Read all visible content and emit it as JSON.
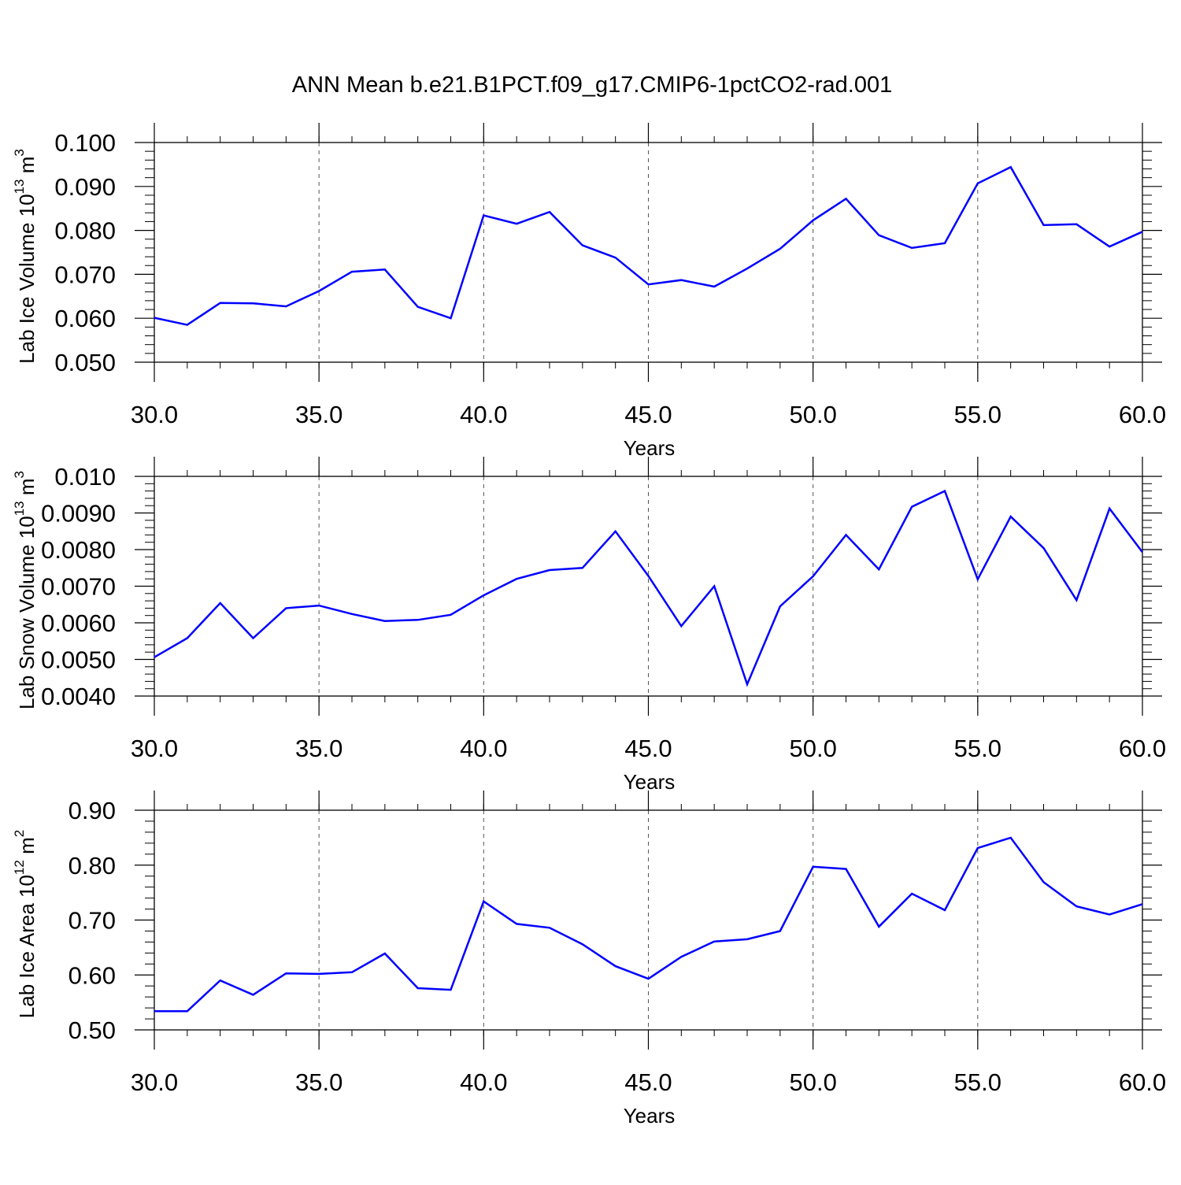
{
  "title": "ANN Mean b.e21.B1PCT.f09_g17.CMIP6-1pctCO2-rad.001",
  "line_color": "#0000ff",
  "chart_data": [
    {
      "type": "line",
      "ylabel": "Lab Ice Volume 10",
      "ylabel_exp": "13",
      "ylabel_unit": " m",
      "ylabel_unit_exp": "3",
      "xlabel": "Years",
      "xlim": [
        30,
        60
      ],
      "ylim": [
        0.05,
        0.1
      ],
      "x_ticks": [
        "30.0",
        "35.0",
        "40.0",
        "45.0",
        "50.0",
        "55.0",
        "60.0"
      ],
      "y_ticks": [
        "0.050",
        "0.060",
        "0.070",
        "0.080",
        "0.090",
        "0.100"
      ],
      "grid": "vertical dashed at major x ticks",
      "x": [
        30,
        31,
        32,
        33,
        34,
        35,
        36,
        37,
        38,
        39,
        40,
        41,
        42,
        43,
        44,
        45,
        46,
        47,
        48,
        49,
        50,
        51,
        52,
        53,
        54,
        55,
        56,
        57,
        58,
        59,
        60
      ],
      "values": [
        0.0601,
        0.0585,
        0.0635,
        0.0634,
        0.0627,
        0.0662,
        0.0706,
        0.0711,
        0.0626,
        0.06,
        0.0834,
        0.0815,
        0.0842,
        0.0766,
        0.0738,
        0.0677,
        0.0687,
        0.0672,
        0.0713,
        0.0758,
        0.0823,
        0.0872,
        0.0789,
        0.076,
        0.0771,
        0.0907,
        0.0944,
        0.0812,
        0.0814,
        0.0763,
        0.0797
      ]
    },
    {
      "type": "line",
      "ylabel": "Lab Snow Volume 10",
      "ylabel_exp": "13",
      "ylabel_unit": " m",
      "ylabel_unit_exp": "3",
      "xlabel": "Years",
      "xlim": [
        30,
        60
      ],
      "ylim": [
        0.004,
        0.01
      ],
      "x_ticks": [
        "30.0",
        "35.0",
        "40.0",
        "45.0",
        "50.0",
        "55.0",
        "60.0"
      ],
      "y_ticks": [
        "0.0040",
        "0.0050",
        "0.0060",
        "0.0070",
        "0.0080",
        "0.0090",
        "0.010"
      ],
      "grid": "vertical dashed at major x ticks",
      "x": [
        30,
        31,
        32,
        33,
        34,
        35,
        36,
        37,
        38,
        39,
        40,
        41,
        42,
        43,
        44,
        45,
        46,
        47,
        48,
        49,
        50,
        51,
        52,
        53,
        54,
        55,
        56,
        57,
        58,
        59,
        60
      ],
      "values": [
        0.00506,
        0.00558,
        0.00654,
        0.00558,
        0.0064,
        0.00647,
        0.00624,
        0.00605,
        0.00608,
        0.00622,
        0.00675,
        0.0072,
        0.00744,
        0.0075,
        0.0085,
        0.00728,
        0.00591,
        0.007,
        0.00432,
        0.00645,
        0.00727,
        0.0084,
        0.00746,
        0.00917,
        0.0096,
        0.00719,
        0.0089,
        0.00804,
        0.00662,
        0.00912,
        0.00793
      ]
    },
    {
      "type": "line",
      "ylabel": "Lab Ice Area 10",
      "ylabel_exp": "12",
      "ylabel_unit": " m",
      "ylabel_unit_exp": "2",
      "xlabel": "Years",
      "xlim": [
        30,
        60
      ],
      "ylim": [
        0.5,
        0.9
      ],
      "x_ticks": [
        "30.0",
        "35.0",
        "40.0",
        "45.0",
        "50.0",
        "55.0",
        "60.0"
      ],
      "y_ticks": [
        "0.50",
        "0.60",
        "0.70",
        "0.80",
        "0.90"
      ],
      "grid": "vertical dashed at major x ticks",
      "x": [
        30,
        31,
        32,
        33,
        34,
        35,
        36,
        37,
        38,
        39,
        40,
        41,
        42,
        43,
        44,
        45,
        46,
        47,
        48,
        49,
        50,
        51,
        52,
        53,
        54,
        55,
        56,
        57,
        58,
        59,
        60
      ],
      "values": [
        0.534,
        0.534,
        0.59,
        0.564,
        0.603,
        0.602,
        0.605,
        0.639,
        0.576,
        0.573,
        0.734,
        0.693,
        0.686,
        0.656,
        0.616,
        0.593,
        0.633,
        0.661,
        0.665,
        0.68,
        0.797,
        0.793,
        0.688,
        0.748,
        0.718,
        0.831,
        0.85,
        0.769,
        0.725,
        0.71,
        0.729
      ]
    }
  ]
}
